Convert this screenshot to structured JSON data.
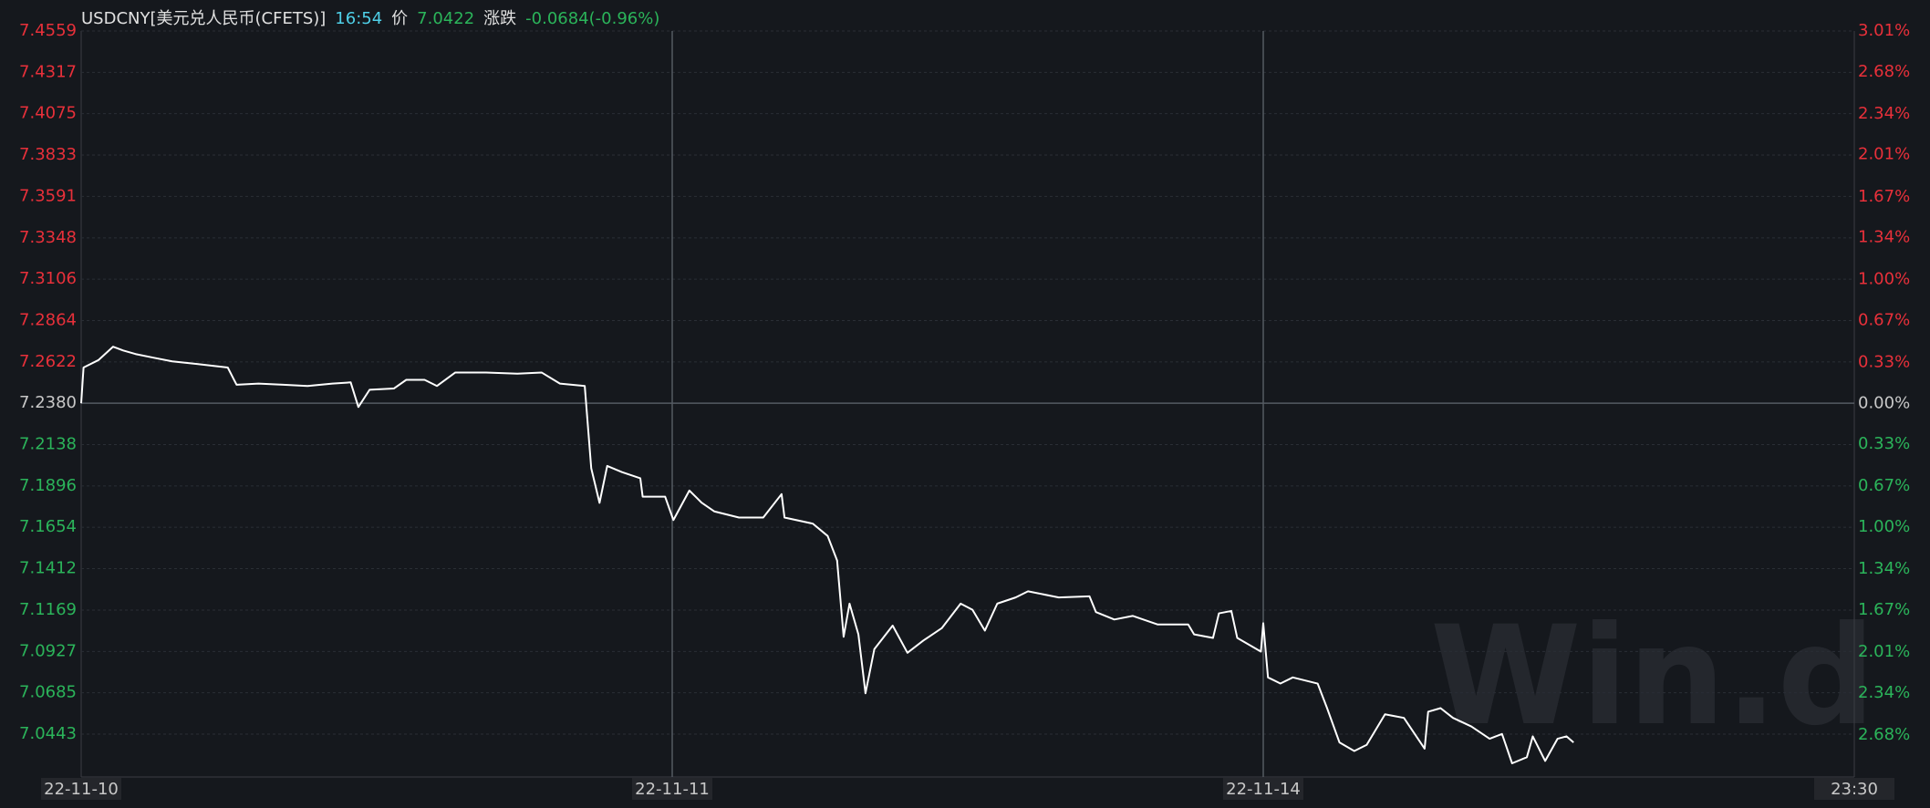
{
  "chart_data": {
    "type": "line",
    "title": "USDCNY[美元兑人民币(CFETS)]",
    "time": "16:54",
    "price_label": "价",
    "price": 7.0422,
    "change_label": "涨跌",
    "change": "-0.0684(-0.96%)",
    "watermark": "Win.d",
    "color": "#ffffff",
    "up_color": "#e8303a",
    "down_color": "#2bb45a",
    "flat_color": "#c8c8c8",
    "grid": true,
    "xlim": [
      0,
      3
    ],
    "xticks": [
      {
        "value": 0,
        "label": "22-11-10"
      },
      {
        "value": 1,
        "label": "22-11-11"
      },
      {
        "value": 2,
        "label": "22-11-14"
      },
      {
        "value": 3,
        "label": "23:30"
      }
    ],
    "ylim": [
      7.0192,
      7.4559
    ],
    "yticks": [
      7.4559,
      7.4317,
      7.4075,
      7.3833,
      7.3591,
      7.3348,
      7.3106,
      7.2864,
      7.2622,
      {
        "value": 7.238,
        "label": "7.2380"
      },
      7.2138,
      7.1896,
      7.1654,
      7.1412,
      7.1169,
      7.0927,
      7.0685,
      7.0443
    ],
    "y2lim": [
      -3.02,
      3.01
    ],
    "y2ticks": [
      {
        "value": 3.01,
        "label": "3.01%"
      },
      {
        "value": 2.68,
        "label": "2.68%"
      },
      {
        "value": 2.34,
        "label": "2.34%"
      },
      {
        "value": 2.01,
        "label": "2.01%"
      },
      {
        "value": 1.67,
        "label": "1.67%"
      },
      {
        "value": 1.34,
        "label": "1.34%"
      },
      {
        "value": 1.0,
        "label": "1.00%"
      },
      {
        "value": 0.67,
        "label": "0.67%"
      },
      {
        "value": 0.33,
        "label": "0.33%"
      },
      {
        "value": 0,
        "label": "0.00%"
      },
      {
        "value": -0.33,
        "label": "0.33%"
      },
      {
        "value": -0.67,
        "label": "0.67%"
      },
      {
        "value": -1.0,
        "label": "1.00%"
      },
      {
        "value": -1.34,
        "label": "1.34%"
      },
      {
        "value": -1.67,
        "label": "1.67%"
      },
      {
        "value": -2.01,
        "label": "2.01%"
      },
      {
        "value": -2.34,
        "label": "2.34%"
      },
      {
        "value": -2.68,
        "label": "2.68%"
      }
    ],
    "x": [
      0,
      0.004,
      0.029,
      0.054,
      0.071,
      0.092,
      0.123,
      0.154,
      0.196,
      0.248,
      0.263,
      0.3,
      0.342,
      0.383,
      0.425,
      0.456,
      0.469,
      0.488,
      0.529,
      0.55,
      0.581,
      0.602,
      0.633,
      0.685,
      0.738,
      0.779,
      0.81,
      0.852,
      0.863,
      0.877,
      0.89,
      0.915,
      0.946,
      0.95,
      0.988,
      1.002,
      1.029,
      1.05,
      1.071,
      1.113,
      1.154,
      1.185,
      1.19,
      1.238,
      1.263,
      1.279,
      1.29,
      1.3,
      1.315,
      1.327,
      1.342,
      1.373,
      1.398,
      1.425,
      1.456,
      1.488,
      1.508,
      1.529,
      1.55,
      1.581,
      1.602,
      1.654,
      1.706,
      1.717,
      1.748,
      1.779,
      1.821,
      1.873,
      1.883,
      1.915,
      1.925,
      1.946,
      1.956,
      1.996,
      2.0,
      2.008,
      2.029,
      2.05,
      2.092,
      2.108,
      2.129,
      2.154,
      2.175,
      2.206,
      2.238,
      2.273,
      2.279,
      2.3,
      2.321,
      2.352,
      2.383,
      2.404,
      2.421,
      2.446,
      2.456,
      2.477,
      2.498,
      2.513,
      2.525
    ],
    "values": [
      7.238,
      7.2589,
      7.2632,
      7.2711,
      7.2689,
      7.2668,
      7.2646,
      7.2625,
      7.261,
      7.2589,
      7.2488,
      7.2495,
      7.2488,
      7.2481,
      7.2495,
      7.2502,
      7.2358,
      7.2459,
      7.2466,
      7.2517,
      7.2517,
      7.2481,
      7.256,
      7.256,
      7.2553,
      7.256,
      7.2495,
      7.2481,
      7.1999,
      7.1797,
      7.2013,
      7.1977,
      7.1941,
      7.1833,
      7.1833,
      7.1696,
      7.1869,
      7.1797,
      7.1747,
      7.1711,
      7.1711,
      7.1848,
      7.1711,
      7.1675,
      7.1603,
      7.1459,
      7.1013,
      7.1207,
      7.1027,
      7.0682,
      7.0941,
      7.1078,
      7.0919,
      7.0991,
      7.1063,
      7.1207,
      7.1171,
      7.1049,
      7.1207,
      7.1243,
      7.1279,
      7.1243,
      7.125,
      7.1157,
      7.1114,
      7.1135,
      7.1085,
      7.1085,
      7.1027,
      7.1006,
      7.115,
      7.1164,
      7.1006,
      7.0926,
      7.1092,
      7.0775,
      7.0739,
      7.0775,
      7.0739,
      7.0595,
      7.0394,
      7.0344,
      7.038,
      7.0559,
      7.0538,
      7.0358,
      7.0574,
      7.0595,
      7.0538,
      7.0488,
      7.0416,
      7.0444,
      7.0272,
      7.0308,
      7.043,
      7.0286,
      7.0416,
      7.043,
      7.0394
    ]
  }
}
